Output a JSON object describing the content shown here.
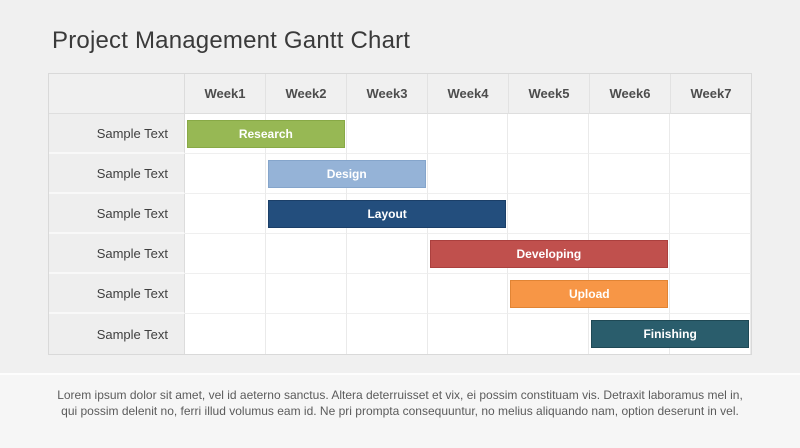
{
  "title": "Project Management Gantt Chart",
  "gantt": {
    "week_headers": [
      "Week1",
      "Week2",
      "Week3",
      "Week4",
      "Week5",
      "Week6",
      "Week7"
    ],
    "total_weeks": 7,
    "rows": [
      {
        "label": "Sample Text",
        "task": {
          "name": "Research",
          "start_week": 1,
          "end_week": 2,
          "color": "#97b854",
          "border_color": "#88a946"
        }
      },
      {
        "label": "Sample Text",
        "task": {
          "name": "Design",
          "start_week": 2,
          "end_week": 3,
          "color": "#95b3d7",
          "border_color": "#85a5cb"
        }
      },
      {
        "label": "Sample Text",
        "task": {
          "name": "Layout",
          "start_week": 2,
          "end_week": 4,
          "color": "#234e7d",
          "border_color": "#1b3f68"
        }
      },
      {
        "label": "Sample Text",
        "task": {
          "name": "Developing",
          "start_week": 4,
          "end_week": 6,
          "color": "#c0504d",
          "border_color": "#ab403e"
        }
      },
      {
        "label": "Sample Text",
        "task": {
          "name": "Upload",
          "start_week": 5,
          "end_week": 6,
          "color": "#f79646",
          "border_color": "#e18434"
        }
      },
      {
        "label": "Sample Text",
        "task": {
          "name": "Finishing",
          "start_week": 6,
          "end_week": 7,
          "color": "#2a5d6c",
          "border_color": "#1f4955"
        }
      }
    ]
  },
  "chart_data": {
    "type": "bar",
    "subtype": "gantt",
    "title": "Project Management Gantt Chart",
    "x_ticks": [
      "Week1",
      "Week2",
      "Week3",
      "Week4",
      "Week5",
      "Week6",
      "Week7"
    ],
    "x_range_weeks": [
      1,
      7
    ],
    "grid": true,
    "tasks": [
      {
        "row_label": "Sample Text",
        "task": "Research",
        "start_week": 1,
        "end_week": 2,
        "duration_weeks": 2,
        "color": "#97b854"
      },
      {
        "row_label": "Sample Text",
        "task": "Design",
        "start_week": 2,
        "end_week": 3,
        "duration_weeks": 2,
        "color": "#95b3d7"
      },
      {
        "row_label": "Sample Text",
        "task": "Layout",
        "start_week": 2,
        "end_week": 4,
        "duration_weeks": 3,
        "color": "#234e7d"
      },
      {
        "row_label": "Sample Text",
        "task": "Developing",
        "start_week": 4,
        "end_week": 6,
        "duration_weeks": 3,
        "color": "#c0504d"
      },
      {
        "row_label": "Sample Text",
        "task": "Upload",
        "start_week": 5,
        "end_week": 6,
        "duration_weeks": 2,
        "color": "#f79646"
      },
      {
        "row_label": "Sample Text",
        "task": "Finishing",
        "start_week": 6,
        "end_week": 7,
        "duration_weeks": 2,
        "color": "#2a5d6c"
      }
    ]
  },
  "footer": {
    "line1": "Lorem ipsum dolor sit amet, vel id aeterno sanctus. Altera deterruisset et vix, ei possim constituam vis. Detraxit laboramus mel in,",
    "line2": "qui possim delenit no, ferri illud volumus eam id. Ne pri prompta consequuntur, no melius aliquando nam, option deserunt in vel."
  },
  "colors": {
    "page_background": "#f0f0f0",
    "footer_background": "#f6f6f6",
    "table_cell_background": "#ffffff",
    "label_cell_background": "#eeeeee",
    "table_border": "#d9d9d9",
    "grid_line": "#eaeaea",
    "title_text": "#3a3a3a",
    "header_text": "#4d4d4d",
    "label_text": "#3f3f3f",
    "bar_text": "#ffffff",
    "footer_text": "#5b5b5b"
  }
}
